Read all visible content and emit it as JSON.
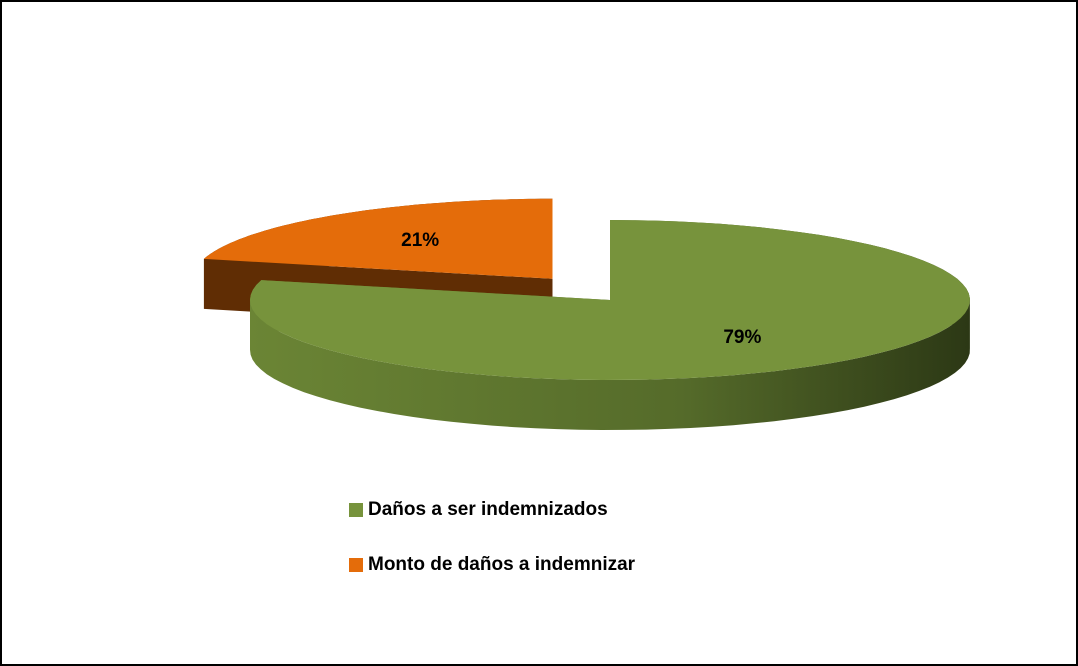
{
  "chart_data": {
    "type": "pie3d",
    "categories": [
      "Daños a ser indemnizados",
      "Monto de daños a indemnizar"
    ],
    "values": [
      79,
      21
    ],
    "value_labels": [
      "79%",
      "21%"
    ],
    "colors": [
      "#77933c",
      "#e46c0a"
    ],
    "legend": "bottom"
  }
}
